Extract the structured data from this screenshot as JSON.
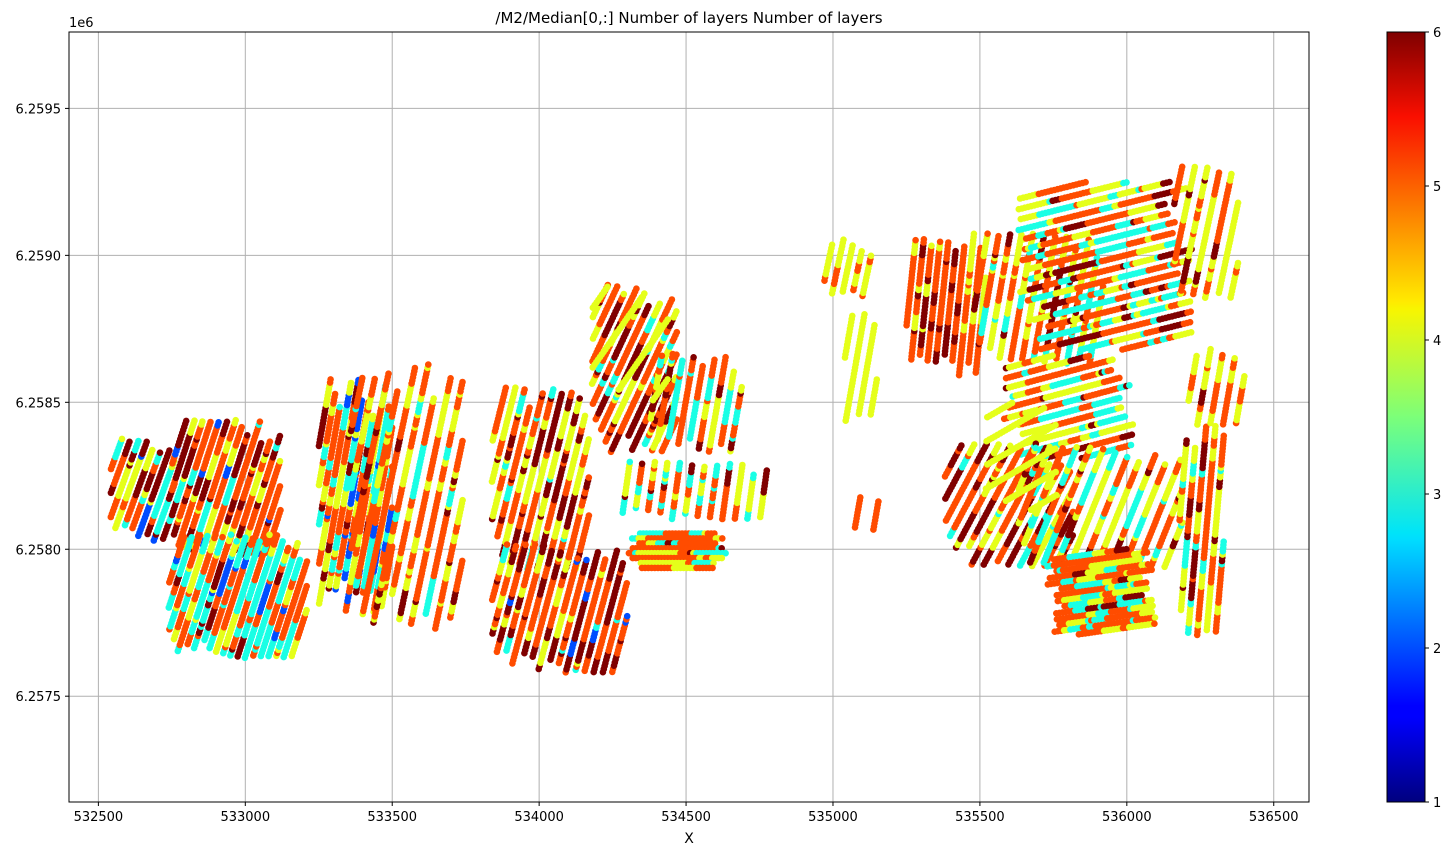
{
  "chart_data": {
    "type": "scatter",
    "title": "/M2/Median[0,:] Number of layers Number of layers",
    "xlabel": "X",
    "ylabel": "",
    "y_offset_label": "1e6",
    "xlim": [
      532400,
      536620
    ],
    "ylim": [
      6257140,
      6259760
    ],
    "x_ticks": [
      532500,
      533000,
      533500,
      534000,
      534500,
      535000,
      535500,
      536000,
      536500
    ],
    "x_tick_labels": [
      "532500",
      "533000",
      "533500",
      "534000",
      "534500",
      "535000",
      "535500",
      "536000",
      "536500"
    ],
    "y_ticks": [
      6257500,
      6258000,
      6258500,
      6259000,
      6259500
    ],
    "y_tick_labels": [
      "6.2575",
      "6.2580",
      "6.2585",
      "6.2590",
      "6.2595"
    ],
    "grid": true,
    "colormap": "jet",
    "colorbar": {
      "range": [
        1,
        6
      ],
      "ticks": [
        1,
        2,
        3,
        4,
        5,
        6
      ],
      "tick_labels": [
        "1",
        "2",
        "3",
        "4",
        "5",
        "6"
      ]
    },
    "clusters": [
      {
        "x": [
          532560,
          532740
        ],
        "y": [
          6258050,
          6258360
        ],
        "lines": 10,
        "angle": 70,
        "mix": [
          0.3,
          0.25,
          0.25,
          0.12,
          0.08
        ]
      },
      {
        "x": [
          532770,
          533100
        ],
        "y": [
          6258000,
          6258420
        ],
        "lines": 16,
        "angle": 72,
        "mix": [
          0.2,
          0.45,
          0.2,
          0.1,
          0.05
        ]
      },
      {
        "x": [
          532760,
          533190
        ],
        "y": [
          6257650,
          6258030
        ],
        "lines": 20,
        "angle": 72,
        "mix": [
          0.04,
          0.4,
          0.1,
          0.4,
          0.06
        ]
      },
      {
        "x": [
          533270,
          533480
        ],
        "y": [
          6257800,
          6258560
        ],
        "lines": 14,
        "angle": 80,
        "mix": [
          0.1,
          0.4,
          0.25,
          0.15,
          0.1
        ]
      },
      {
        "x": [
          533380,
          533720
        ],
        "y": [
          6257750,
          6258620
        ],
        "lines": 12,
        "angle": 78,
        "mix": [
          0.1,
          0.55,
          0.3,
          0.05,
          0.0
        ]
      },
      {
        "x": [
          533860,
          534150
        ],
        "y": [
          6257950,
          6258530
        ],
        "lines": 13,
        "angle": 76,
        "mix": [
          0.25,
          0.4,
          0.3,
          0.05,
          0.0
        ]
      },
      {
        "x": [
          533860,
          534280
        ],
        "y": [
          6257600,
          6258000
        ],
        "lines": 16,
        "angle": 75,
        "mix": [
          0.35,
          0.45,
          0.12,
          0.05,
          0.03
        ]
      },
      {
        "x": [
          534200,
          534450
        ],
        "y": [
          6258350,
          6258880
        ],
        "lines": 14,
        "angle": 65,
        "mix": [
          0.2,
          0.45,
          0.25,
          0.1,
          0.0
        ]
      },
      {
        "x": [
          534400,
          534670
        ],
        "y": [
          6258350,
          6258650
        ],
        "lines": 9,
        "angle": 80,
        "mix": [
          0.2,
          0.35,
          0.25,
          0.2,
          0.0
        ]
      },
      {
        "x": [
          534280,
          534780
        ],
        "y": [
          6258120,
          6258280
        ],
        "lines": 12,
        "angle": 82,
        "mix": [
          0.1,
          0.3,
          0.4,
          0.2,
          0.0
        ]
      },
      {
        "x": [
          534300,
          534640
        ],
        "y": [
          6257930,
          6258060
        ],
        "lines": 8,
        "angle": 0,
        "mix": [
          0.1,
          0.5,
          0.25,
          0.15,
          0.0
        ]
      },
      {
        "x": [
          534990,
          535110
        ],
        "y": [
          6258870,
          6259040
        ],
        "lines": 5,
        "angle": 78,
        "mix": [
          0.05,
          0.25,
          0.7,
          0.0,
          0.0
        ]
      },
      {
        "x": [
          535270,
          535500
        ],
        "y": [
          6258600,
          6259080
        ],
        "lines": 10,
        "angle": 84,
        "mix": [
          0.2,
          0.55,
          0.25,
          0.0,
          0.0
        ]
      },
      {
        "x": [
          535500,
          535900
        ],
        "y": [
          6258650,
          6259060
        ],
        "lines": 12,
        "angle": 80,
        "mix": [
          0.1,
          0.4,
          0.35,
          0.15,
          0.0
        ]
      },
      {
        "x": [
          535650,
          536200
        ],
        "y": [
          6258700,
          6259230
        ],
        "lines": 18,
        "angle": 14,
        "mix": [
          0.12,
          0.4,
          0.28,
          0.2,
          0.0
        ]
      },
      {
        "x": [
          536180,
          536360
        ],
        "y": [
          6258820,
          6259330
        ],
        "lines": 7,
        "angle": 78,
        "mix": [
          0.15,
          0.35,
          0.5,
          0.0,
          0.0
        ]
      },
      {
        "x": [
          535600,
          536000
        ],
        "y": [
          6258330,
          6258640
        ],
        "lines": 12,
        "angle": 15,
        "mix": [
          0.1,
          0.4,
          0.3,
          0.2,
          0.0
        ]
      },
      {
        "x": [
          535400,
          535800
        ],
        "y": [
          6257960,
          6258340
        ],
        "lines": 14,
        "angle": 62,
        "mix": [
          0.3,
          0.4,
          0.2,
          0.1,
          0.0
        ]
      },
      {
        "x": [
          535650,
          536170
        ],
        "y": [
          6257960,
          6258330
        ],
        "lines": 14,
        "angle": 68,
        "mix": [
          0.12,
          0.3,
          0.4,
          0.18,
          0.0
        ]
      },
      {
        "x": [
          535750,
          536080
        ],
        "y": [
          6257730,
          6257980
        ],
        "lines": 14,
        "angle": 8,
        "mix": [
          0.05,
          0.4,
          0.3,
          0.25,
          0.0
        ]
      },
      {
        "x": [
          536200,
          536310
        ],
        "y": [
          6257700,
          6258430
        ],
        "lines": 6,
        "angle": 85,
        "mix": [
          0.1,
          0.3,
          0.45,
          0.15,
          0.0
        ]
      },
      {
        "x": [
          536230,
          536380
        ],
        "y": [
          6258420,
          6258670
        ],
        "lines": 5,
        "angle": 80,
        "mix": [
          0.05,
          0.5,
          0.45,
          0.0,
          0.0
        ]
      }
    ],
    "sparse_lines": [
      {
        "x": [
          534200,
          534420
        ],
        "y": [
          6258520,
          6258880
        ],
        "count": 4,
        "angle": 55,
        "value": 4
      },
      {
        "x": [
          535060,
          535130
        ],
        "y": [
          6258430,
          6258800
        ],
        "count": 4,
        "angle": 80,
        "value": 4
      },
      {
        "x": [
          535090,
          535140
        ],
        "y": [
          6258060,
          6258180
        ],
        "count": 2,
        "angle": 80,
        "value": 5
      },
      {
        "x": [
          535540,
          535740
        ],
        "y": [
          6258150,
          6258480
        ],
        "count": 6,
        "angle": 30,
        "value": 4
      }
    ]
  }
}
